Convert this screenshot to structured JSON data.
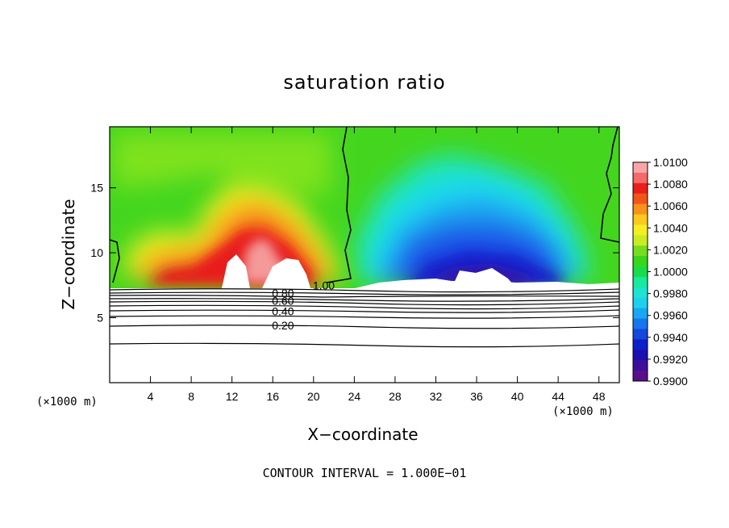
{
  "chart_data": {
    "type": "heatmap",
    "title": "saturation ratio",
    "xlabel": "X−coordinate",
    "ylabel": "Z−coordinate",
    "x_unit_label": "(×1000 m)",
    "y_unit_label": "(×1000 m)",
    "xlim": [
      0,
      50
    ],
    "ylim": [
      0,
      19.7
    ],
    "x_ticks": [
      4,
      8,
      12,
      16,
      20,
      24,
      28,
      32,
      36,
      40,
      44,
      48
    ],
    "y_ticks": [
      5,
      10,
      15
    ],
    "colorbar": {
      "min": 0.99,
      "max": 1.01,
      "labels": [
        "1.0100",
        "1.0080",
        "1.0060",
        "1.0040",
        "1.0020",
        "1.0000",
        "0.9980",
        "0.9960",
        "0.9940",
        "0.9920",
        "0.9900"
      ],
      "colors": [
        "#f7a6a6",
        "#f46a6a",
        "#e8201c",
        "#f0561a",
        "#f7921a",
        "#fcc91e",
        "#f6ee22",
        "#c7ed22",
        "#76dc1e",
        "#3ad61e",
        "#19dc4a",
        "#19e99d",
        "#1ee3cf",
        "#1ed0f0",
        "#1aa7f2",
        "#1876ec",
        "#1447dc",
        "#0f1fc8",
        "#1a0fb0",
        "#3c0f9a",
        "#5a0f8a"
      ]
    },
    "contour_lines": [
      {
        "label": "1.00",
        "x": 21,
        "z": 7.5
      },
      {
        "label": "0.80",
        "x": 17,
        "z": 6.9
      },
      {
        "label": "0.60",
        "x": 17,
        "z": 6.3
      },
      {
        "label": "0.40",
        "x": 17,
        "z": 5.5
      },
      {
        "label": "0.20",
        "x": 17,
        "z": 4.4
      }
    ],
    "contour_interval_text": "CONTOUR INTERVAL = 1.000E−01"
  }
}
